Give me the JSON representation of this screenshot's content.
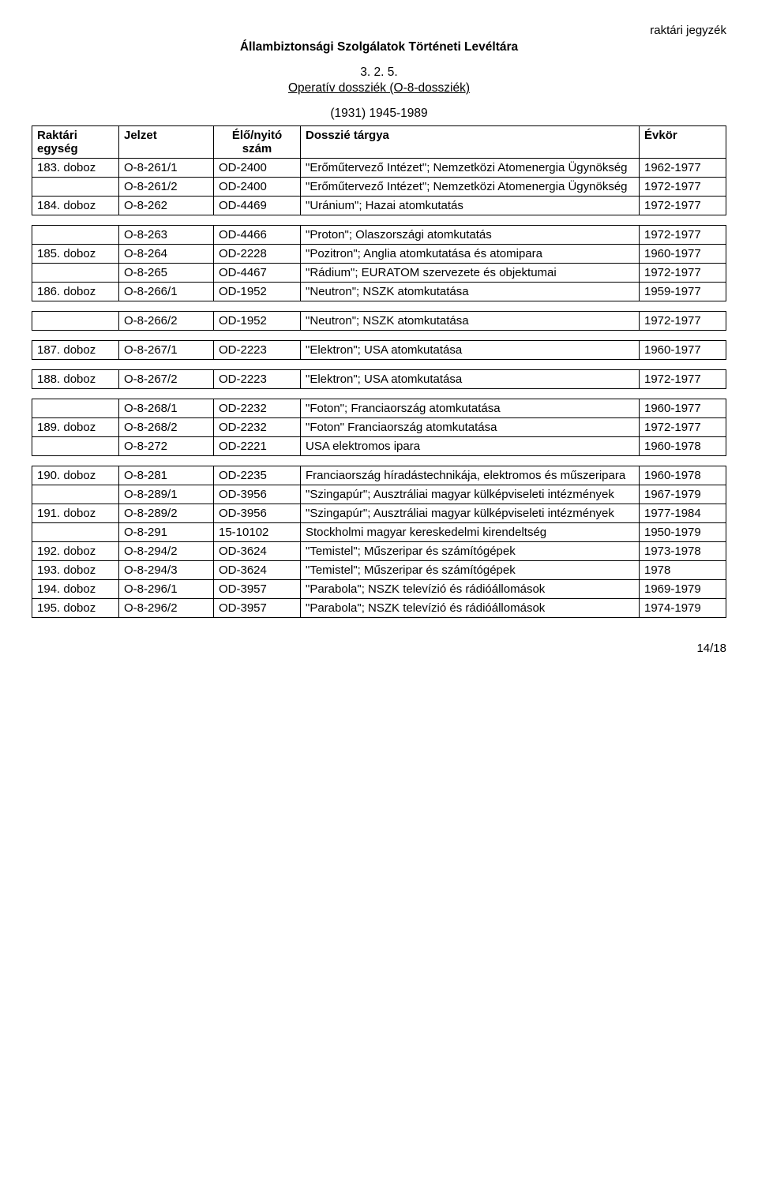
{
  "header": {
    "top_right": "raktári jegyzék",
    "archive_name": "Állambiztonsági Szolgálatok Történeti Levéltára",
    "section_number": "3. 2. 5.",
    "section_title": "Operatív dossziék (O-8-dossziék)",
    "year_range": "(1931) 1945-1989"
  },
  "columns": {
    "raktari": "Raktári egység",
    "jelzet": "Jelzet",
    "szam": "Élő/nyitó szám",
    "targy": "Dosszié tárgya",
    "evkor": "Évkör"
  },
  "groups": [
    {
      "rows": [
        {
          "raktari": "183. doboz",
          "jelzet": "O-8-261/1",
          "szam": "OD-2400",
          "targy": "\"Erőműtervező Intézet\"; Nemzetközi Atomenergia Ügynökség",
          "evkor": "1962-1977"
        },
        {
          "raktari": "",
          "jelzet": "O-8-261/2",
          "szam": "OD-2400",
          "targy": "\"Erőműtervező Intézet\"; Nemzetközi Atomenergia Ügynökség",
          "evkor": "1972-1977"
        },
        {
          "raktari": "184. doboz",
          "jelzet": "O-8-262",
          "szam": "OD-4469",
          "targy": "\"Uránium\";  Hazai atomkutatás",
          "evkor": "1972-1977"
        }
      ]
    },
    {
      "rows": [
        {
          "raktari": "",
          "jelzet": "O-8-263",
          "szam": "OD-4466",
          "targy": "\"Proton\";  Olaszországi atomkutatás",
          "evkor": "1972-1977"
        },
        {
          "raktari": "185. doboz",
          "jelzet": "O-8-264",
          "szam": "OD-2228",
          "targy": "\"Pozitron\"; Anglia atomkutatása és atomipara",
          "evkor": "1960-1977"
        },
        {
          "raktari": "",
          "jelzet": "O-8-265",
          "szam": "OD-4467",
          "targy": "\"Rádium\";  EURATOM szervezete és objektumai",
          "evkor": "1972-1977"
        },
        {
          "raktari": "186. doboz",
          "jelzet": "O-8-266/1",
          "szam": "OD-1952",
          "targy": "\"Neutron\"; NSZK atomkutatása",
          "evkor": "1959-1977"
        }
      ]
    },
    {
      "rows": [
        {
          "raktari": "",
          "jelzet": "O-8-266/2",
          "szam": "OD-1952",
          "targy": "\"Neutron\"; NSZK atomkutatása",
          "evkor": "1972-1977"
        }
      ]
    },
    {
      "rows": [
        {
          "raktari": "187. doboz",
          "jelzet": "O-8-267/1",
          "szam": "OD-2223",
          "targy": "\"Elektron\"; USA atomkutatása",
          "evkor": "1960-1977"
        }
      ]
    },
    {
      "rows": [
        {
          "raktari": "188. doboz",
          "jelzet": "O-8-267/2",
          "szam": "OD-2223",
          "targy": "\"Elektron\"; USA atomkutatása",
          "evkor": "1972-1977"
        }
      ]
    },
    {
      "rows": [
        {
          "raktari": "",
          "jelzet": "O-8-268/1",
          "szam": "OD-2232",
          "targy": "\"Foton\"; Franciaország atomkutatása",
          "evkor": "1960-1977"
        },
        {
          "raktari": "189. doboz",
          "jelzet": "O-8-268/2",
          "szam": "OD-2232",
          "targy": "\"Foton\" Franciaország atomkutatása",
          "evkor": "1972-1977"
        },
        {
          "raktari": "",
          "jelzet": "O-8-272",
          "szam": "OD-2221",
          "targy": "USA elektromos ipara",
          "evkor": "1960-1978"
        }
      ]
    },
    {
      "rows": [
        {
          "raktari": "190. doboz",
          "jelzet": "O-8-281",
          "szam": "OD-2235",
          "targy": "Franciaország híradástechnikája, elektromos és műszeripara",
          "evkor": "1960-1978"
        },
        {
          "raktari": "",
          "jelzet": "O-8-289/1",
          "szam": "OD-3956",
          "targy": "\"Szingapúr\"; Ausztráliai magyar külképviseleti intézmények",
          "evkor": "1967-1979"
        },
        {
          "raktari": "191. doboz",
          "jelzet": "O-8-289/2",
          "szam": "OD-3956",
          "targy": "\"Szingapúr\"; Ausztráliai magyar külképviseleti intézmények",
          "evkor": "1977-1984"
        },
        {
          "raktari": "",
          "jelzet": "O-8-291",
          "szam": "15-10102",
          "targy": "Stockholmi magyar kereskedelmi kirendeltség",
          "evkor": "1950-1979"
        },
        {
          "raktari": "192. doboz",
          "jelzet": "O-8-294/2",
          "szam": "OD-3624",
          "targy": "\"Temistel\"; Műszeripar és számítógépek",
          "evkor": "1973-1978"
        },
        {
          "raktari": "193. doboz",
          "jelzet": "O-8-294/3",
          "szam": "OD-3624",
          "targy": "\"Temistel\"; Műszeripar és számítógépek",
          "evkor": "1978"
        },
        {
          "raktari": "194. doboz",
          "jelzet": "O-8-296/1",
          "szam": "OD-3957",
          "targy": "\"Parabola\"; NSZK televízió és rádióállomások",
          "evkor": "1969-1979"
        },
        {
          "raktari": "195. doboz",
          "jelzet": "O-8-296/2",
          "szam": "OD-3957",
          "targy": "\"Parabola\"; NSZK televízió és rádióállomások",
          "evkor": "1974-1979"
        }
      ]
    }
  ],
  "footer": {
    "page_number": "14/18"
  }
}
